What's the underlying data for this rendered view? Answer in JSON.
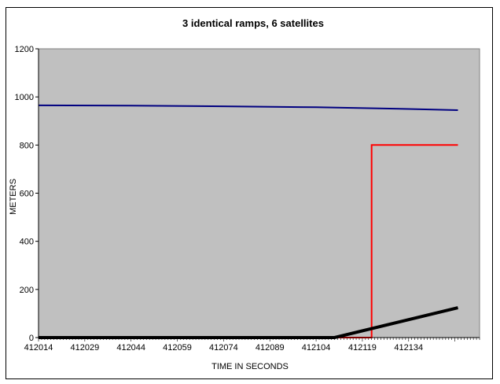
{
  "chart_data": {
    "type": "line",
    "title": "3 identical ramps, 6 satellites",
    "xlabel": "TIME IN SECONDS",
    "ylabel": "METERS",
    "x_tick_labels": [
      "412014",
      "412029",
      "412044",
      "412059",
      "412074",
      "412089",
      "412104",
      "412119",
      "412134"
    ],
    "x_tick_values": [
      412014,
      412029,
      412044,
      412059,
      412074,
      412089,
      412104,
      412119,
      412134
    ],
    "xlim": [
      412014,
      412157
    ],
    "ylim": [
      0,
      1200
    ],
    "y_ticks": [
      0,
      200,
      400,
      600,
      800,
      1000,
      1200
    ],
    "grid": false,
    "plot_background": "#c0c0c0",
    "series": [
      {
        "color": "#000080",
        "x": [
          412014,
          412044,
          412074,
          412104,
          412134,
          412150
        ],
        "y": [
          965,
          964,
          961,
          957,
          950,
          945
        ]
      },
      {
        "color": "#ff0000",
        "x": [
          412014,
          412122,
          412122,
          412150
        ],
        "y": [
          0,
          0,
          800,
          800
        ]
      },
      {
        "color": "#000000",
        "x": [
          412014,
          412110,
          412150
        ],
        "y": [
          0,
          0,
          124
        ]
      }
    ]
  }
}
